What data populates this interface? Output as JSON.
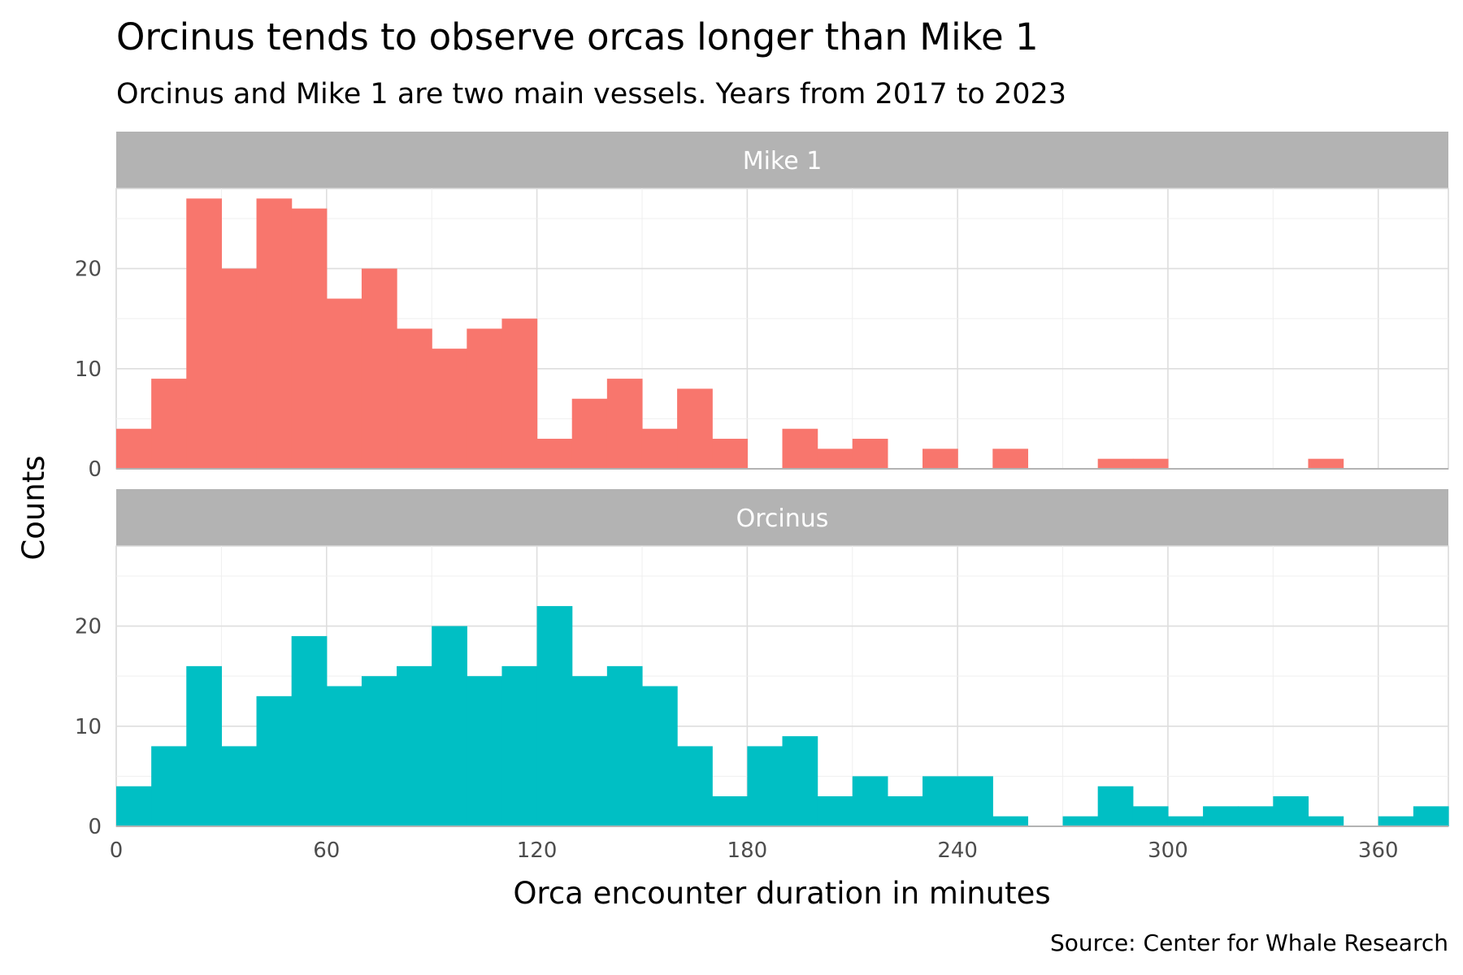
{
  "title": "Orcinus tends to observe orcas longer than Mike 1",
  "subtitle": "Orcinus and Mike 1 are two main vessels. Years from 2017 to 2023",
  "caption": "Source: Center for Whale Research",
  "chart_data": {
    "type": "bar",
    "subtype": "histogram",
    "facet_layout": "vertical",
    "xlabel": "Orca encounter duration in minutes",
    "ylabel": "Counts",
    "bin_width": 10,
    "xlim": [
      0,
      380
    ],
    "ylim": [
      0,
      28
    ],
    "x_ticks": [
      0,
      60,
      120,
      180,
      240,
      300,
      360
    ],
    "y_ticks": [
      0,
      10,
      20
    ],
    "grid": true,
    "legend": "none",
    "series": [
      {
        "name": "Mike 1",
        "color": "#F8766D",
        "bin_starts": [
          0,
          10,
          20,
          30,
          40,
          50,
          60,
          70,
          80,
          90,
          100,
          110,
          120,
          130,
          140,
          150,
          160,
          170,
          180,
          190,
          200,
          210,
          220,
          230,
          240,
          250,
          260,
          270,
          280,
          290,
          300,
          310,
          320,
          330,
          340,
          350,
          360,
          370
        ],
        "values": [
          4,
          9,
          27,
          20,
          27,
          26,
          17,
          20,
          14,
          12,
          14,
          15,
          3,
          7,
          9,
          4,
          8,
          3,
          0,
          4,
          2,
          3,
          0,
          2,
          0,
          2,
          0,
          0,
          1,
          1,
          0,
          0,
          0,
          0,
          1,
          0,
          0,
          0
        ]
      },
      {
        "name": "Orcinus",
        "color": "#00BFC4",
        "bin_starts": [
          0,
          10,
          20,
          30,
          40,
          50,
          60,
          70,
          80,
          90,
          100,
          110,
          120,
          130,
          140,
          150,
          160,
          170,
          180,
          190,
          200,
          210,
          220,
          230,
          240,
          250,
          260,
          270,
          280,
          290,
          300,
          310,
          320,
          330,
          340,
          350,
          360,
          370
        ],
        "values": [
          4,
          8,
          16,
          8,
          13,
          19,
          14,
          15,
          16,
          20,
          15,
          16,
          22,
          15,
          16,
          14,
          8,
          3,
          8,
          9,
          3,
          5,
          3,
          5,
          5,
          1,
          0,
          1,
          4,
          2,
          1,
          2,
          2,
          3,
          1,
          0,
          1,
          2
        ]
      }
    ]
  }
}
